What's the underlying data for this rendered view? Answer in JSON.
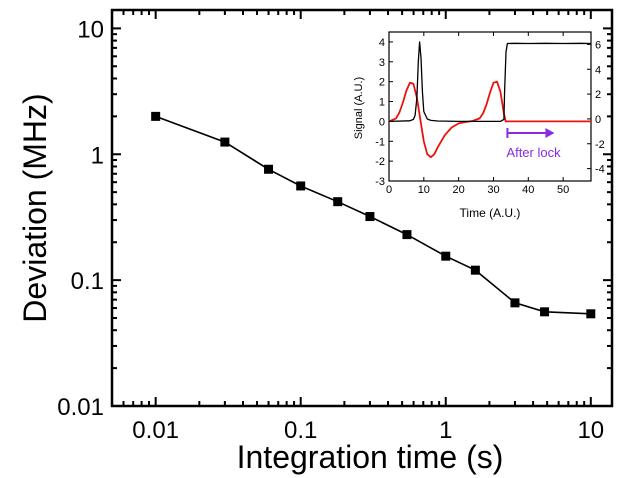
{
  "chart_data": [
    {
      "id": "main",
      "type": "line",
      "xlabel": "Integration time (s)",
      "ylabel": "Deviation (MHz)",
      "x_scale": "log",
      "y_scale": "log",
      "xlim": [
        0.005,
        14
      ],
      "ylim": [
        0.01,
        14
      ],
      "x_ticks": [
        0.01,
        0.1,
        1,
        10
      ],
      "x_tick_labels": [
        "0.01",
        "0.1",
        "1",
        "10"
      ],
      "y_ticks": [
        0.01,
        0.1,
        1,
        10
      ],
      "y_tick_labels": [
        "0.01",
        "0.1",
        "1",
        "10"
      ],
      "grid": false,
      "series": [
        {
          "color": "#000000",
          "marker": "square",
          "x": [
            0.01,
            0.03,
            0.06,
            0.1,
            0.18,
            0.3,
            0.54,
            1,
            1.6,
            3,
            4.8,
            10
          ],
          "y": [
            2.0,
            1.25,
            0.76,
            0.56,
            0.42,
            0.32,
            0.23,
            0.155,
            0.12,
            0.066,
            0.056,
            0.054
          ]
        }
      ]
    },
    {
      "id": "inset",
      "type": "line",
      "xlabel": "Time (A.U.)",
      "ylabel": "Signal (A.U.)",
      "xlim": [
        0,
        58
      ],
      "ylim": [
        -3,
        4.5
      ],
      "y2lim": [
        -5,
        7
      ],
      "x_ticks": [
        0,
        10,
        20,
        30,
        40,
        50
      ],
      "y_ticks": [
        -3,
        -2,
        -1,
        0,
        1,
        2,
        3,
        4
      ],
      "y2_ticks": [
        -4,
        -2,
        0,
        2,
        4,
        6
      ],
      "grid": false,
      "annotation": "After lock",
      "annotation_color": "#8a2be2",
      "series": [
        {
          "axis": "left",
          "color": "#000000",
          "x": [
            0,
            6,
            7,
            7.5,
            8,
            8.4,
            8.8,
            9.2,
            9.6,
            10,
            11,
            12,
            14,
            20,
            30,
            32,
            33,
            33.2,
            33.6,
            34,
            36,
            40,
            45,
            50,
            55,
            58
          ],
          "y": [
            0,
            0.03,
            0.1,
            0.3,
            1.2,
            3.0,
            4.0,
            3.2,
            1.5,
            0.5,
            0.12,
            0.05,
            0.02,
            0.0,
            0.0,
            0.0,
            0.1,
            1.5,
            3.5,
            3.92,
            3.93,
            3.92,
            3.93,
            3.92,
            3.93,
            3.92
          ]
        },
        {
          "axis": "left",
          "color": "#e8140c",
          "x": [
            0,
            2,
            3,
            4,
            5,
            6,
            7,
            8,
            9,
            10,
            11,
            12,
            13,
            14,
            16,
            18,
            20,
            22,
            24,
            26,
            27,
            28,
            29,
            30,
            31,
            32,
            33,
            33.5,
            34,
            36,
            40,
            45,
            50,
            58
          ],
          "y": [
            0,
            0.15,
            0.45,
            0.95,
            1.55,
            1.95,
            1.9,
            1.2,
            0.1,
            -1.0,
            -1.65,
            -1.8,
            -1.65,
            -1.3,
            -0.7,
            -0.3,
            -0.1,
            -0.03,
            0.02,
            0.15,
            0.4,
            0.85,
            1.45,
            1.95,
            2.0,
            1.5,
            0.4,
            0.0,
            0.0,
            0.0,
            0.0,
            0.0,
            0.0,
            0.0
          ]
        }
      ]
    }
  ]
}
